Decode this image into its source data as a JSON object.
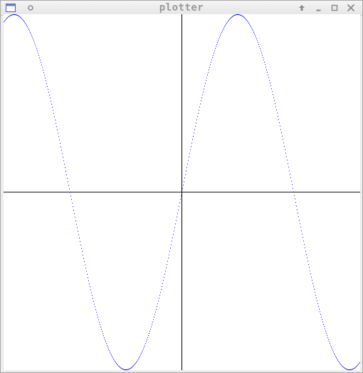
{
  "window": {
    "title": "plotter",
    "icons": {
      "menu": "window-menu-icon",
      "pin": "pin-icon",
      "raise": "raise-icon",
      "minimize": "minimize-icon",
      "maximize": "maximize-icon",
      "close": "close-icon"
    }
  },
  "colors": {
    "curve": "#0000ff",
    "axes": "#000000",
    "background": "#ffffff"
  },
  "chart_data": {
    "type": "line",
    "function": "sin",
    "xlim": [
      -5,
      5
    ],
    "ylim": [
      -1,
      1
    ],
    "grid": false,
    "axes_at_origin": true,
    "sample_count": 500
  }
}
